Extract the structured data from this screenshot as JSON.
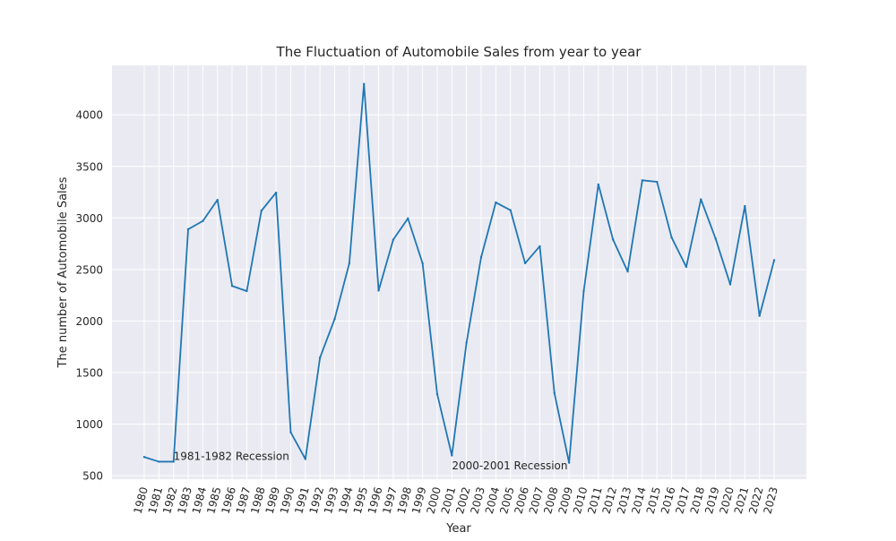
{
  "chart_data": {
    "type": "line",
    "title": "The Fluctuation of Automobile Sales from year to year",
    "xlabel": "Year",
    "ylabel": "The number of Automobile Sales",
    "x": [
      1980,
      1981,
      1982,
      1983,
      1984,
      1985,
      1986,
      1987,
      1988,
      1989,
      1990,
      1991,
      1992,
      1993,
      1994,
      1995,
      1996,
      1997,
      1998,
      1999,
      2000,
      2001,
      2002,
      2003,
      2004,
      2005,
      2006,
      2007,
      2008,
      2009,
      2010,
      2011,
      2012,
      2013,
      2014,
      2015,
      2016,
      2017,
      2018,
      2019,
      2020,
      2021,
      2022,
      2023
    ],
    "x_tick_labels": [
      "1980",
      "1981",
      "1982",
      "1983",
      "1984",
      "1985",
      "1986",
      "1987",
      "1988",
      "1989",
      "1990",
      "1991",
      "1992",
      "1993",
      "1994",
      "1995",
      "1996",
      "1997",
      "1998",
      "1999",
      "2000",
      "2001",
      "2002",
      "2003",
      "2004",
      "2005",
      "2006",
      "2007",
      "2008",
      "2009",
      "2010",
      "2011",
      "2012",
      "2013",
      "2014",
      "2015",
      "2016",
      "2017",
      "2018",
      "2019",
      "2020",
      "2021",
      "2022",
      "2023"
    ],
    "series": [
      {
        "values": [
          680,
          635,
          635,
          2890,
          2970,
          3175,
          2340,
          2290,
          3070,
          3245,
          920,
          660,
          1645,
          2020,
          2560,
          4300,
          2295,
          2790,
          2995,
          2560,
          1290,
          695,
          1790,
          2620,
          3150,
          3075,
          2560,
          2725,
          1300,
          625,
          2290,
          3325,
          2790,
          2480,
          3365,
          3350,
          2810,
          2525,
          3180,
          2800,
          2355,
          3115,
          2050,
          2590
        ],
        "color": "#1f77b4"
      }
    ],
    "y_ticks": [
      500,
      1000,
      1500,
      2000,
      2500,
      3000,
      3500,
      4000
    ],
    "y_tick_labels": [
      "500",
      "1000",
      "1500",
      "2000",
      "2500",
      "3000",
      "3500",
      "4000"
    ],
    "xlim": [
      1977.8,
      2025.2
    ],
    "ylim": [
      465,
      4480
    ],
    "grid": true,
    "background": "#eaeaf2",
    "annotations": [
      {
        "text": "1981-1982 Recession",
        "x": 1982,
        "y": 650
      },
      {
        "text": "2000-2001 Recession",
        "x": 2001,
        "y": 560
      }
    ]
  }
}
